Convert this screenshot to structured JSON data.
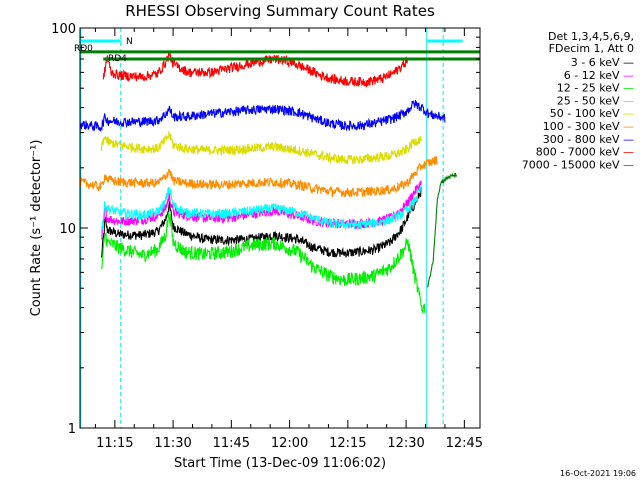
{
  "chart_data": {
    "type": "line",
    "title": "RHESSI Observing Summary Count Rates",
    "xlabel": "Start Time (13-Dec-09 11:06:02)",
    "ylabel": "Count Rate (s⁻¹ detector⁻¹)",
    "ylim": [
      1,
      100
    ],
    "yscale": "log",
    "xlim_minutes": [
      0,
      103
    ],
    "x_tick_labels": [
      "11:15",
      "11:30",
      "11:45",
      "12:00",
      "12:15",
      "12:30",
      "12:45"
    ],
    "x_tick_minutes": [
      8.97,
      23.97,
      38.97,
      53.97,
      68.97,
      83.97,
      98.97
    ],
    "y_tick_labels": [
      "1",
      "10",
      "100"
    ],
    "y_tick_values": [
      1,
      10,
      100
    ],
    "legend_header": [
      "Det 1,3,4,5,6,9,",
      "FDecim 1, Att 0"
    ],
    "legend_placement": "right",
    "grid": false,
    "annotations": {
      "flag_labels": [
        "RD0",
        "RD4",
        "N"
      ],
      "timestamp": "16-Oct-2021 19:06"
    },
    "markers": {
      "dashed_lines_minutes": [
        10.5,
        93.5
      ],
      "solid_lines_minutes": [
        0.2,
        89.3
      ],
      "green_level_upper": 76,
      "green_level_lower": 70,
      "green_lower_span_minutes": [
        6,
        103
      ],
      "n_bar_spans_minutes": [
        [
          0,
          10.5
        ],
        [
          89.3,
          98.5
        ]
      ]
    },
    "series": [
      {
        "name": "3 - 6 keV",
        "color": "#000000",
        "knots": [
          [
            5.5,
            7
          ],
          [
            6.5,
            11
          ],
          [
            7,
            9.8
          ],
          [
            10,
            9.3
          ],
          [
            16,
            9.2
          ],
          [
            20,
            9.6
          ],
          [
            22,
            11
          ],
          [
            23,
            13
          ],
          [
            24,
            10.2
          ],
          [
            27,
            9.4
          ],
          [
            32,
            8.8
          ],
          [
            37,
            8.7
          ],
          [
            44,
            8.8
          ],
          [
            50,
            9.2
          ],
          [
            56,
            8.8
          ],
          [
            60,
            8
          ],
          [
            64,
            7.6
          ],
          [
            68,
            7.5
          ],
          [
            72,
            7.6
          ],
          [
            76,
            7.8
          ],
          [
            80,
            8.5
          ],
          [
            83,
            10
          ],
          [
            84.5,
            11.5
          ],
          [
            86,
            13
          ],
          [
            88,
            15.5
          ]
        ]
      },
      {
        "name": "6 - 12 keV",
        "color": "#ff00ff",
        "knots": [
          [
            5.5,
            8.5
          ],
          [
            6.5,
            12.5
          ],
          [
            7,
            11.2
          ],
          [
            10,
            10.8
          ],
          [
            16,
            11
          ],
          [
            20,
            11.5
          ],
          [
            22,
            12.5
          ],
          [
            23,
            14.5
          ],
          [
            24,
            12
          ],
          [
            27,
            11.6
          ],
          [
            32,
            11.2
          ],
          [
            38,
            11.2
          ],
          [
            44,
            11.7
          ],
          [
            50,
            12.2
          ],
          [
            56,
            11.5
          ],
          [
            60,
            10.9
          ],
          [
            64,
            10.6
          ],
          [
            68,
            10.5
          ],
          [
            72,
            10.5
          ],
          [
            76,
            10.7
          ],
          [
            80,
            11.2
          ],
          [
            83,
            12.5
          ],
          [
            84.5,
            13.5
          ],
          [
            86,
            15
          ],
          [
            88,
            17
          ]
        ]
      },
      {
        "name": "12 - 25 keV",
        "color": "#00ee00",
        "knots": [
          [
            5.5,
            6
          ],
          [
            6.5,
            9.5
          ],
          [
            7,
            8.5
          ],
          [
            10,
            8
          ],
          [
            16,
            7.3
          ],
          [
            20,
            7.8
          ],
          [
            22,
            9.2
          ],
          [
            23,
            12
          ],
          [
            24,
            8.5
          ],
          [
            27,
            7.6
          ],
          [
            32,
            7.4
          ],
          [
            38,
            7.6
          ],
          [
            44,
            8.2
          ],
          [
            50,
            8.4
          ],
          [
            56,
            7.6
          ],
          [
            60,
            6.4
          ],
          [
            64,
            5.8
          ],
          [
            68,
            5.5
          ],
          [
            72,
            5.6
          ],
          [
            76,
            5.8
          ],
          [
            80,
            6.4
          ],
          [
            83,
            7.6
          ],
          [
            84.5,
            8.5
          ],
          [
            86,
            6
          ],
          [
            88,
            4
          ],
          [
            89,
            4
          ]
        ]
      },
      {
        "name": "25 - 50 keV",
        "color": "#00ffff",
        "knots": [
          [
            5.5,
            9.5
          ],
          [
            6.5,
            13.5
          ],
          [
            7,
            12.5
          ],
          [
            10,
            12
          ],
          [
            16,
            11.6
          ],
          [
            20,
            12
          ],
          [
            22,
            13.5
          ],
          [
            23,
            16
          ],
          [
            24,
            13
          ],
          [
            27,
            12
          ],
          [
            32,
            11.8
          ],
          [
            38,
            11.8
          ],
          [
            44,
            12.2
          ],
          [
            50,
            12.6
          ],
          [
            56,
            12
          ],
          [
            60,
            11.2
          ],
          [
            64,
            10.6
          ],
          [
            68,
            10.4
          ],
          [
            72,
            10.4
          ],
          [
            76,
            10.6
          ],
          [
            80,
            11
          ],
          [
            83,
            11.8
          ],
          [
            84.5,
            12.5
          ],
          [
            86,
            13.5
          ],
          [
            88,
            16
          ]
        ]
      },
      {
        "name": "50 - 100 keV",
        "color": "#dcdc00",
        "knots": [
          [
            5.5,
            25
          ],
          [
            6.5,
            29
          ],
          [
            7,
            27
          ],
          [
            10,
            26
          ],
          [
            16,
            25
          ],
          [
            20,
            25
          ],
          [
            22,
            27.5
          ],
          [
            23,
            29.5
          ],
          [
            24,
            26
          ],
          [
            27,
            25
          ],
          [
            32,
            24.5
          ],
          [
            38,
            24.5
          ],
          [
            44,
            25
          ],
          [
            50,
            25.5
          ],
          [
            56,
            24.5
          ],
          [
            60,
            23.5
          ],
          [
            64,
            22.5
          ],
          [
            68,
            22
          ],
          [
            72,
            22
          ],
          [
            76,
            22.5
          ],
          [
            80,
            23
          ],
          [
            83,
            24
          ],
          [
            84.5,
            25
          ],
          [
            86,
            27
          ],
          [
            88,
            28
          ]
        ]
      },
      {
        "name": "100 - 300 keV",
        "color": "#ff8c00",
        "knots": [
          [
            0,
            17
          ],
          [
            5.5,
            16
          ],
          [
            6.5,
            18.5
          ],
          [
            7,
            17.5
          ],
          [
            10,
            17
          ],
          [
            16,
            16.8
          ],
          [
            20,
            16.8
          ],
          [
            22,
            18
          ],
          [
            23,
            19.5
          ],
          [
            24,
            17.2
          ],
          [
            27,
            16.8
          ],
          [
            32,
            16.5
          ],
          [
            38,
            16.5
          ],
          [
            44,
            16.8
          ],
          [
            50,
            17
          ],
          [
            56,
            16.5
          ],
          [
            60,
            15.8
          ],
          [
            64,
            15.3
          ],
          [
            68,
            15.1
          ],
          [
            72,
            15.1
          ],
          [
            76,
            15.3
          ],
          [
            80,
            15.6
          ],
          [
            83,
            16.3
          ],
          [
            84.5,
            17
          ],
          [
            86,
            18.5
          ],
          [
            88,
            20.5
          ],
          [
            92,
            22
          ]
        ]
      },
      {
        "name": "300 - 800 keV",
        "color": "#0000ff",
        "knots": [
          [
            0,
            33
          ],
          [
            5.5,
            32
          ],
          [
            6.5,
            36
          ],
          [
            7,
            34.5
          ],
          [
            10,
            34
          ],
          [
            16,
            34
          ],
          [
            20,
            34.5
          ],
          [
            22,
            37
          ],
          [
            23,
            39.5
          ],
          [
            24,
            36
          ],
          [
            27,
            36
          ],
          [
            32,
            37
          ],
          [
            38,
            38
          ],
          [
            44,
            39
          ],
          [
            50,
            39.5
          ],
          [
            56,
            38
          ],
          [
            60,
            35.5
          ],
          [
            64,
            33.5
          ],
          [
            68,
            32.5
          ],
          [
            72,
            32.5
          ],
          [
            76,
            33.5
          ],
          [
            80,
            35
          ],
          [
            83,
            37
          ],
          [
            84.5,
            39
          ],
          [
            86,
            42
          ],
          [
            88,
            40
          ],
          [
            90,
            37
          ],
          [
            94,
            35.5
          ]
        ]
      },
      {
        "name": "800 - 7000 keV",
        "color": "#ff0000",
        "knots": [
          [
            6,
            55
          ],
          [
            7,
            72
          ],
          [
            8,
            60
          ],
          [
            10,
            58
          ],
          [
            16,
            57
          ],
          [
            20,
            59
          ],
          [
            22,
            67
          ],
          [
            23,
            74
          ],
          [
            24,
            66
          ],
          [
            28,
            60
          ],
          [
            34,
            60
          ],
          [
            40,
            64
          ],
          [
            46,
            68
          ],
          [
            50,
            70
          ],
          [
            54,
            68
          ],
          [
            58,
            63
          ],
          [
            62,
            58
          ],
          [
            66,
            55
          ],
          [
            70,
            54
          ],
          [
            74,
            54
          ],
          [
            78,
            56
          ],
          [
            81,
            60
          ],
          [
            83,
            65
          ],
          [
            84.5,
            70
          ]
        ]
      },
      {
        "name": "7000 - 15000 keV",
        "color": "#008000",
        "knots": [
          [
            89.5,
            5
          ],
          [
            91,
            7
          ],
          [
            92,
            14
          ],
          [
            93,
            17
          ],
          [
            95,
            18
          ],
          [
            97,
            18.5
          ]
        ]
      }
    ]
  }
}
